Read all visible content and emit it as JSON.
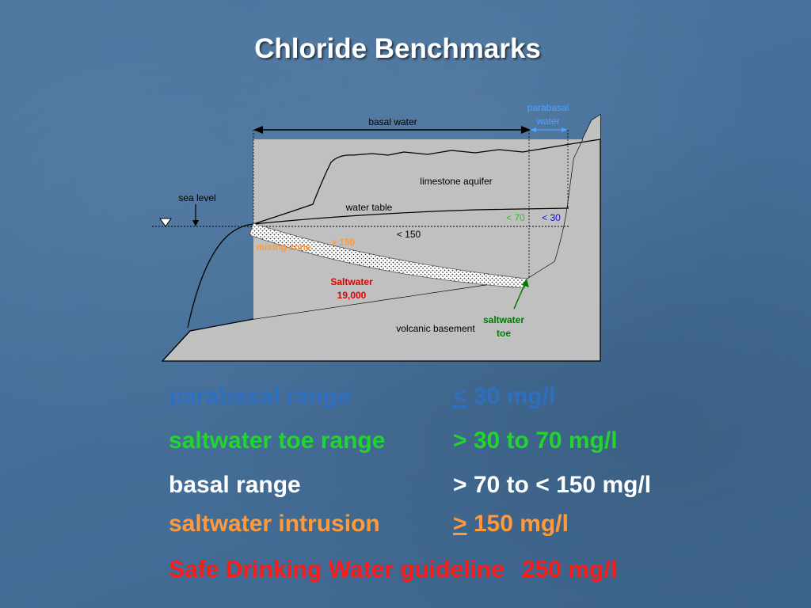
{
  "slide": {
    "title": "Chloride Benchmarks"
  },
  "diagram": {
    "basal_water": "basal water",
    "parabasal_water_line1": "parabasal",
    "parabasal_water_line2": "water",
    "limestone_aquifer": "limestone aquifer",
    "sea_level": "sea level",
    "water_table": "water table",
    "lt70": "< 70",
    "lt30": "< 30",
    "lt150": "< 150",
    "mixing_zone": "mixing zone",
    "mixing_value": "> 150",
    "saltwater_line1": "Saltwater",
    "saltwater_line2": "19,000",
    "saltwater_toe_line1": "saltwater",
    "saltwater_toe_line2": "toe",
    "volcanic_basement": "volcanic basement"
  },
  "benchmarks": [
    {
      "label": "parabasal range",
      "prefix": "<",
      "value": " 30 mg/l",
      "color": "#2e6fc2"
    },
    {
      "label": "saltwater toe range",
      "prefix": "",
      "value": "> 30 to 70 mg/l",
      "color": "#22d42e"
    },
    {
      "label": "basal range",
      "prefix": "",
      "value": "> 70 to < 150 mg/l",
      "color": "#ffffff"
    },
    {
      "label": "saltwater intrusion",
      "prefix": ">",
      "value": " 150 mg/l",
      "color": "#ff9a3c"
    }
  ],
  "guideline": {
    "label": "Safe Drinking Water guideline",
    "value": "250 mg/l",
    "color": "#ff1a1a"
  },
  "colors": {
    "diagram_fill": "#c0c0c0",
    "basal_label": "#000000",
    "parabasal_label": "#4da3ff",
    "lt70": "#22c422",
    "lt30": "#1010d0",
    "mixing": "#ff9a3c",
    "saltwater": "#e00000",
    "toe_label": "#007a00"
  }
}
